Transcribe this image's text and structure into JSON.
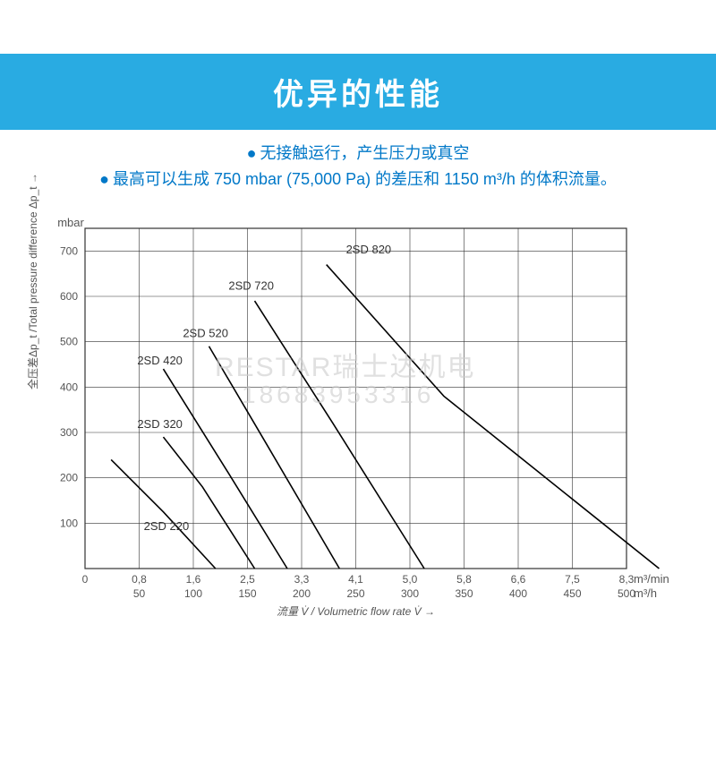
{
  "banner": {
    "title": "优异的性能"
  },
  "subtitles": {
    "line1": "无接触运行，产生压力或真空",
    "line2": "最高可以生成 750 mbar (75,000 Pa) 的差压和 1150 m³/h 的体积流量。"
  },
  "watermark": {
    "line1": "RESTAR瑞士达机电",
    "line2": "18683953316"
  },
  "chart": {
    "type": "line",
    "background_color": "#ffffff",
    "grid_color": "#333333",
    "grid_width": 0.6,
    "line_color": "#000000",
    "line_width": 1.6,
    "x": {
      "ticks_top": [
        "0",
        "0,8",
        "1,6",
        "2,5",
        "3,3",
        "4,1",
        "5,0",
        "5,8",
        "6,6",
        "7,5",
        "8,3"
      ],
      "ticks_bot": [
        "",
        "50",
        "100",
        "150",
        "200",
        "250",
        "300",
        "350",
        "400",
        "450",
        "500"
      ],
      "count": 11,
      "unit_top": "m³/min",
      "unit_bot": "m³/h",
      "axis_label": "流量 V̇ / Volumetric flow rate V̇ →"
    },
    "y": {
      "ticks": [
        "100",
        "200",
        "300",
        "400",
        "500",
        "600",
        "700"
      ],
      "min": 0,
      "max": 750,
      "unit": "mbar",
      "axis_label": "全压差Δp_t /Total pressure difference Δp_t →"
    },
    "series": [
      {
        "name": "2SD 220",
        "label_at": {
          "x": 0.9,
          "y": 85
        },
        "points": [
          {
            "x": 0.4,
            "y": 240
          },
          {
            "x": 1.2,
            "y": 125
          },
          {
            "x": 2.0,
            "y": 0
          }
        ]
      },
      {
        "name": "2SD 320",
        "label_at": {
          "x": 0.8,
          "y": 310
        },
        "points": [
          {
            "x": 1.2,
            "y": 290
          },
          {
            "x": 1.8,
            "y": 180
          },
          {
            "x": 2.6,
            "y": 0
          }
        ]
      },
      {
        "name": "2SD 420",
        "label_at": {
          "x": 0.8,
          "y": 450
        },
        "points": [
          {
            "x": 1.2,
            "y": 440
          },
          {
            "x": 2.2,
            "y": 210
          },
          {
            "x": 3.1,
            "y": 0
          }
        ]
      },
      {
        "name": "2SD 520",
        "label_at": {
          "x": 1.5,
          "y": 510
        },
        "points": [
          {
            "x": 1.9,
            "y": 490
          },
          {
            "x": 2.8,
            "y": 270
          },
          {
            "x": 3.9,
            "y": 0
          }
        ]
      },
      {
        "name": "2SD 720",
        "label_at": {
          "x": 2.2,
          "y": 615
        },
        "points": [
          {
            "x": 2.6,
            "y": 590
          },
          {
            "x": 3.8,
            "y": 320
          },
          {
            "x": 5.2,
            "y": 0
          }
        ]
      },
      {
        "name": "2SD 820",
        "label_at": {
          "x": 4.0,
          "y": 695
        },
        "points": [
          {
            "x": 3.7,
            "y": 670
          },
          {
            "x": 5.5,
            "y": 380
          },
          {
            "x": 8.8,
            "y": 0
          }
        ]
      }
    ]
  }
}
